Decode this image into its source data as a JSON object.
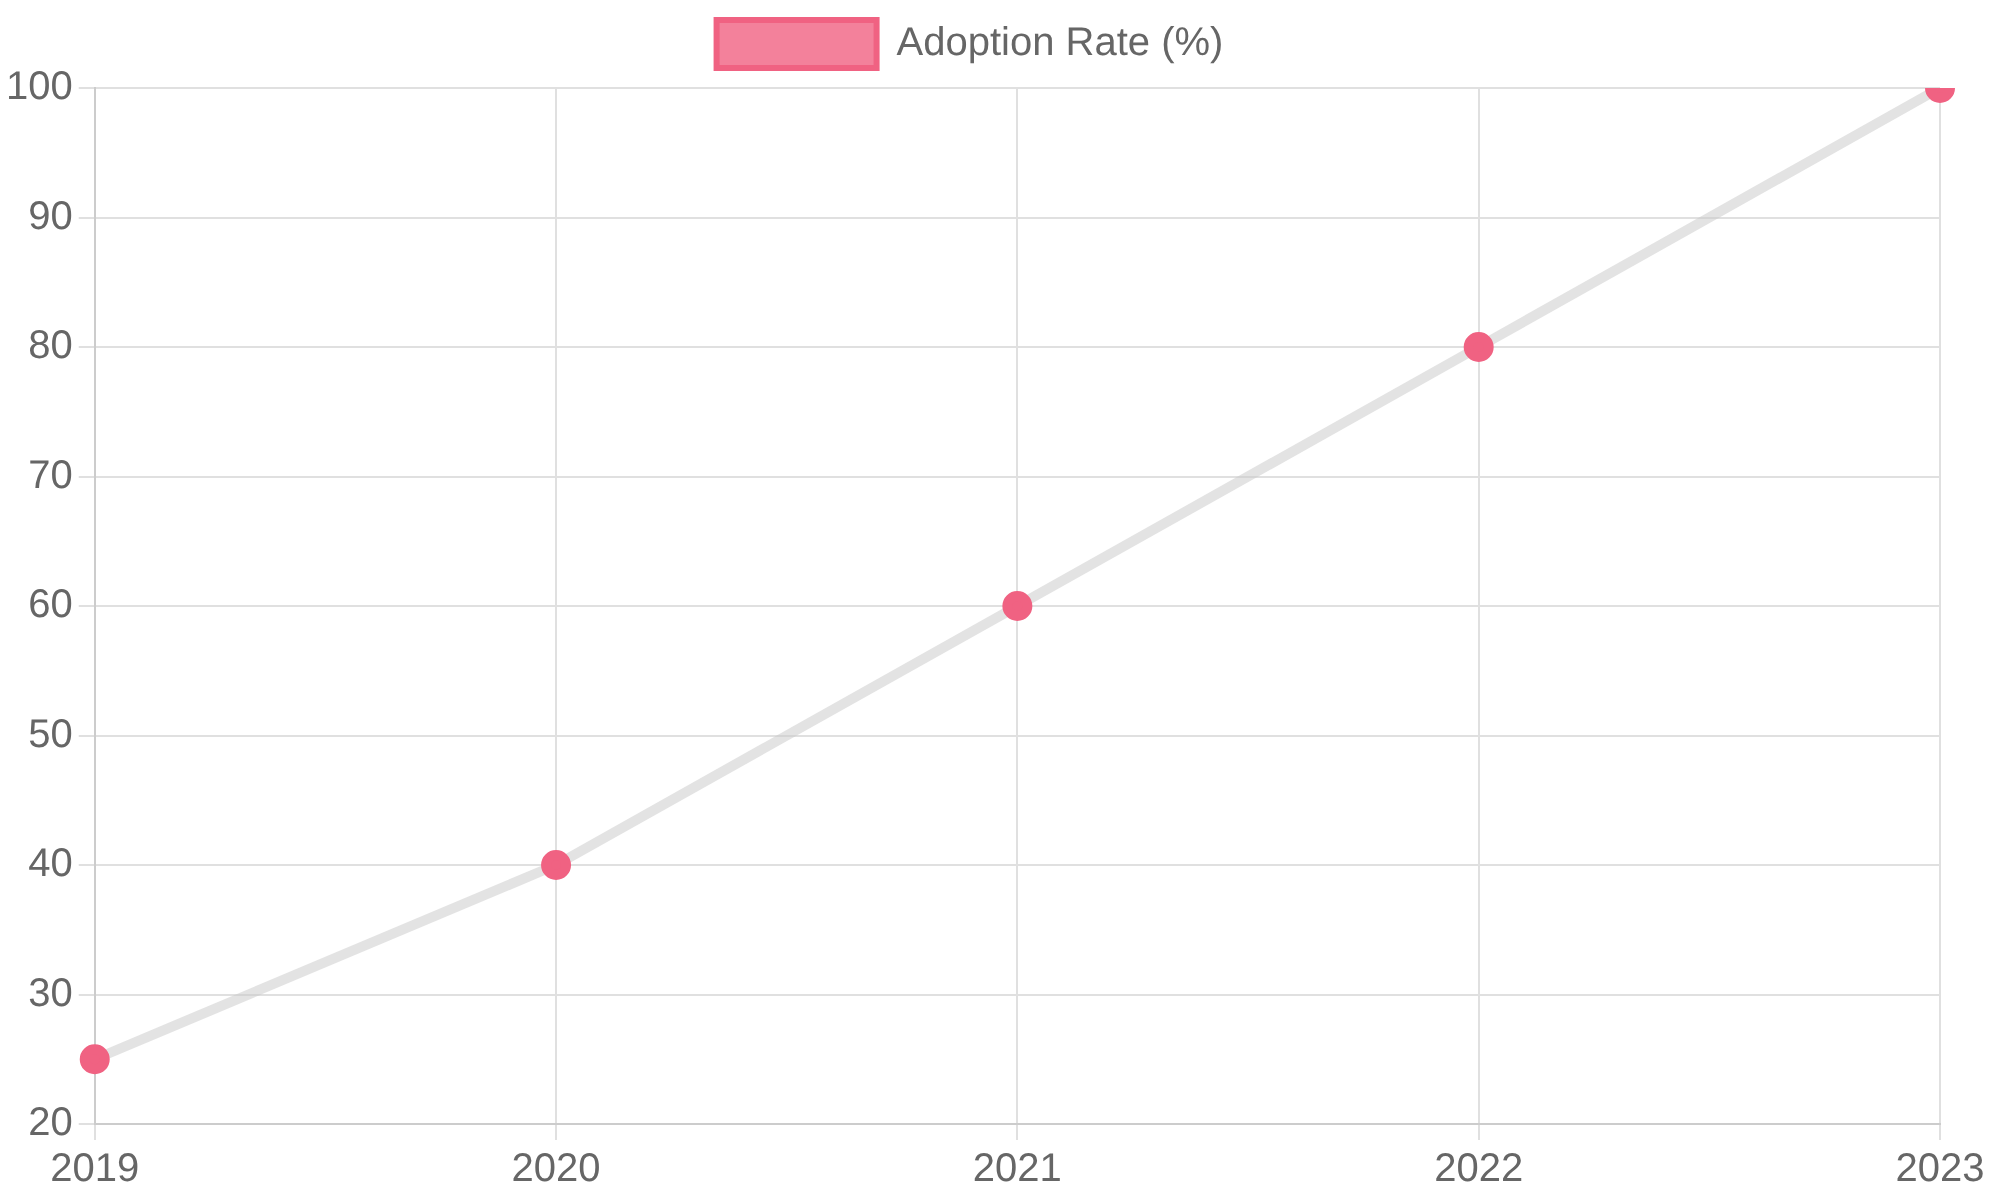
{
  "chart_data": {
    "type": "line",
    "categories": [
      "2019",
      "2020",
      "2021",
      "2022",
      "2023"
    ],
    "series": [
      {
        "name": "Adoption Rate (%)",
        "color": "#f06282",
        "values": [
          25,
          40,
          60,
          80,
          100
        ]
      }
    ],
    "ylim": [
      20,
      100
    ],
    "yticks": [
      20,
      30,
      40,
      50,
      60,
      70,
      80,
      90,
      100
    ],
    "grid": true,
    "legend": "top",
    "marker": "circle",
    "line_style": "solid"
  }
}
